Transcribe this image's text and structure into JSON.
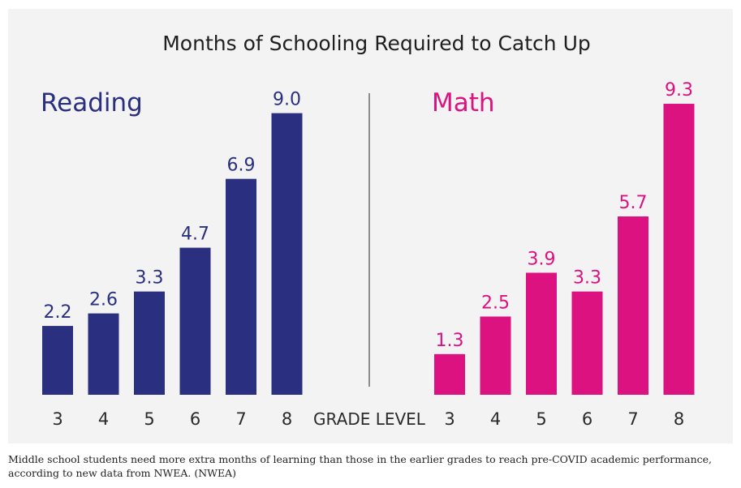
{
  "chart_data": {
    "type": "bar",
    "title": "Months of Schooling Required to Catch Up",
    "xlabel": "GRADE LEVEL",
    "categories": [
      "3",
      "4",
      "5",
      "6",
      "7",
      "8"
    ],
    "ylim": [
      0,
      10
    ],
    "grid": false,
    "series": [
      {
        "name": "Reading",
        "values": [
          2.2,
          2.6,
          3.3,
          4.7,
          6.9,
          9.0
        ],
        "labels": [
          "2.2",
          "2.6",
          "3.3",
          "4.7",
          "6.9",
          "9.0"
        ]
      },
      {
        "name": "Math",
        "values": [
          1.3,
          2.5,
          3.9,
          3.3,
          5.7,
          9.3
        ],
        "labels": [
          "1.3",
          "2.5",
          "3.9",
          "3.3",
          "5.7",
          "9.3"
        ]
      }
    ]
  },
  "colors": {
    "reading": "#2a2f7f",
    "math": "#db127f",
    "title": "#1f1f1f",
    "axis": "#2b2b2b",
    "background": "#f3f3f3"
  },
  "caption": "Middle school students need more extra months of learning than those in the earlier grades to reach pre-COVID academic performance, according to new data from NWEA. (NWEA)"
}
